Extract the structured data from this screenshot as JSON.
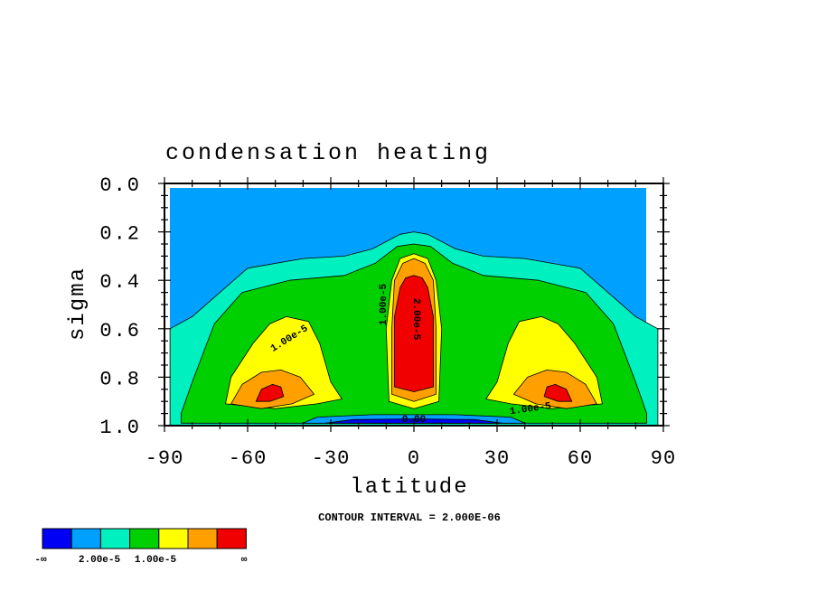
{
  "chart_data": {
    "type": "heatmap",
    "title": "condensation heating",
    "xlabel": "latitude",
    "ylabel": "sigma",
    "xlim": [
      -90,
      90
    ],
    "ylim": [
      1.0,
      0.0
    ],
    "x_ticks": [
      "-90",
      "-60",
      "-30",
      "0",
      "30",
      "60",
      "90"
    ],
    "x_tick_values": [
      -90,
      -60,
      -30,
      0,
      30,
      60,
      90
    ],
    "y_ticks": [
      "0.0",
      "0.2",
      "0.4",
      "0.6",
      "0.8",
      "1.0"
    ],
    "y_tick_values": [
      0.0,
      0.2,
      0.4,
      0.6,
      0.8,
      1.0
    ],
    "footnote": "CONTOUR INTERVAL = 2.000E-06",
    "contour_interval": 2e-06,
    "contour_labels": [
      "1.00e-5",
      "1.00e-5",
      "2.00e-5",
      "1.00e-5",
      "0.00"
    ],
    "colorbar": {
      "colors": [
        "#0000f5",
        "#00a0ff",
        "#00f0c0",
        "#00d000",
        "#ffff00",
        "#ffa000",
        "#f00000"
      ],
      "labels": [
        "-∞",
        "2.00e-5",
        "1.00e-5",
        "∞"
      ]
    },
    "regions": [
      {
        "level": 1,
        "color": "#00f0c0",
        "poly": [
          [
            -88,
            0.6
          ],
          [
            -80,
            0.55
          ],
          [
            -70,
            0.45
          ],
          [
            -60,
            0.35
          ],
          [
            -40,
            0.31
          ],
          [
            -25,
            0.3
          ],
          [
            -15,
            0.27
          ],
          [
            -5,
            0.21
          ],
          [
            0,
            0.2
          ],
          [
            5,
            0.21
          ],
          [
            15,
            0.27
          ],
          [
            25,
            0.3
          ],
          [
            40,
            0.31
          ],
          [
            60,
            0.35
          ],
          [
            70,
            0.45
          ],
          [
            80,
            0.55
          ],
          [
            88,
            0.6
          ],
          [
            88,
            1.0
          ],
          [
            -88,
            1.0
          ]
        ]
      },
      {
        "level": 2,
        "color": "#00d000",
        "poly": [
          [
            -84,
            0.95
          ],
          [
            -80,
            0.82
          ],
          [
            -72,
            0.58
          ],
          [
            -62,
            0.45
          ],
          [
            -45,
            0.4
          ],
          [
            -25,
            0.38
          ],
          [
            -14,
            0.33
          ],
          [
            -6,
            0.26
          ],
          [
            0,
            0.25
          ],
          [
            6,
            0.26
          ],
          [
            14,
            0.33
          ],
          [
            25,
            0.38
          ],
          [
            45,
            0.4
          ],
          [
            62,
            0.45
          ],
          [
            72,
            0.58
          ],
          [
            80,
            0.82
          ],
          [
            84,
            0.95
          ],
          [
            84,
            0.99
          ],
          [
            -84,
            0.99
          ]
        ]
      },
      {
        "level": 3,
        "color": "#ffff00",
        "poly": [
          [
            -68,
            0.91
          ],
          [
            -66,
            0.8
          ],
          [
            -58,
            0.66
          ],
          [
            -52,
            0.58
          ],
          [
            -46,
            0.55
          ],
          [
            -38,
            0.57
          ],
          [
            -34,
            0.66
          ],
          [
            -30,
            0.82
          ],
          [
            -26,
            0.89
          ],
          [
            -35,
            0.91
          ],
          [
            -50,
            0.93
          ]
        ]
      },
      {
        "level": 3,
        "color": "#ffff00",
        "poly": [
          [
            26,
            0.89
          ],
          [
            30,
            0.82
          ],
          [
            34,
            0.66
          ],
          [
            38,
            0.57
          ],
          [
            46,
            0.55
          ],
          [
            52,
            0.58
          ],
          [
            58,
            0.66
          ],
          [
            66,
            0.8
          ],
          [
            68,
            0.91
          ],
          [
            50,
            0.93
          ],
          [
            35,
            0.91
          ]
        ]
      },
      {
        "level": 3,
        "color": "#ffff00",
        "poly": [
          [
            -9,
            0.9
          ],
          [
            -10,
            0.6
          ],
          [
            -8,
            0.4
          ],
          [
            -5,
            0.31
          ],
          [
            0,
            0.29
          ],
          [
            5,
            0.31
          ],
          [
            8,
            0.4
          ],
          [
            10,
            0.6
          ],
          [
            9,
            0.9
          ],
          [
            0,
            0.93
          ]
        ]
      },
      {
        "level": 4,
        "color": "#ffa000",
        "poly": [
          [
            -66,
            0.91
          ],
          [
            -62,
            0.83
          ],
          [
            -55,
            0.78
          ],
          [
            -48,
            0.77
          ],
          [
            -41,
            0.8
          ],
          [
            -36,
            0.87
          ],
          [
            -44,
            0.91
          ],
          [
            -55,
            0.93
          ]
        ]
      },
      {
        "level": 4,
        "color": "#ffa000",
        "poly": [
          [
            36,
            0.87
          ],
          [
            41,
            0.8
          ],
          [
            48,
            0.77
          ],
          [
            55,
            0.78
          ],
          [
            62,
            0.83
          ],
          [
            66,
            0.91
          ],
          [
            55,
            0.93
          ],
          [
            44,
            0.91
          ]
        ]
      },
      {
        "level": 4,
        "color": "#ffa000",
        "poly": [
          [
            -8,
            0.87
          ],
          [
            -8,
            0.6
          ],
          [
            -7,
            0.4
          ],
          [
            -4,
            0.33
          ],
          [
            0,
            0.31
          ],
          [
            4,
            0.33
          ],
          [
            7,
            0.4
          ],
          [
            8,
            0.6
          ],
          [
            8,
            0.87
          ],
          [
            0,
            0.9
          ]
        ]
      },
      {
        "level": 5,
        "color": "#f00000",
        "poly": [
          [
            -7,
            0.84
          ],
          [
            -7,
            0.55
          ],
          [
            -5,
            0.43
          ],
          [
            -3,
            0.39
          ],
          [
            0,
            0.38
          ],
          [
            3,
            0.39
          ],
          [
            5,
            0.43
          ],
          [
            7,
            0.55
          ],
          [
            7,
            0.84
          ],
          [
            0,
            0.86
          ]
        ]
      },
      {
        "level": 5,
        "color": "#f00000",
        "poly": [
          [
            -57,
            0.9
          ],
          [
            -55,
            0.85
          ],
          [
            -51,
            0.83
          ],
          [
            -48,
            0.84
          ],
          [
            -47,
            0.88
          ],
          [
            -52,
            0.9
          ]
        ]
      },
      {
        "level": 5,
        "color": "#f00000",
        "poly": [
          [
            47,
            0.88
          ],
          [
            48,
            0.84
          ],
          [
            51,
            0.83
          ],
          [
            55,
            0.85
          ],
          [
            57,
            0.9
          ],
          [
            52,
            0.9
          ]
        ]
      },
      {
        "level": 1,
        "color": "#00a0ff",
        "poly": [
          [
            -40,
            0.99
          ],
          [
            -35,
            0.965
          ],
          [
            -15,
            0.955
          ],
          [
            0,
            0.955
          ],
          [
            15,
            0.955
          ],
          [
            35,
            0.965
          ],
          [
            40,
            0.99
          ]
        ]
      },
      {
        "level": 0,
        "color": "#0000f5",
        "poly": [
          [
            -32,
            0.99
          ],
          [
            -22,
            0.975
          ],
          [
            0,
            0.972
          ],
          [
            22,
            0.975
          ],
          [
            32,
            0.99
          ]
        ]
      }
    ]
  }
}
